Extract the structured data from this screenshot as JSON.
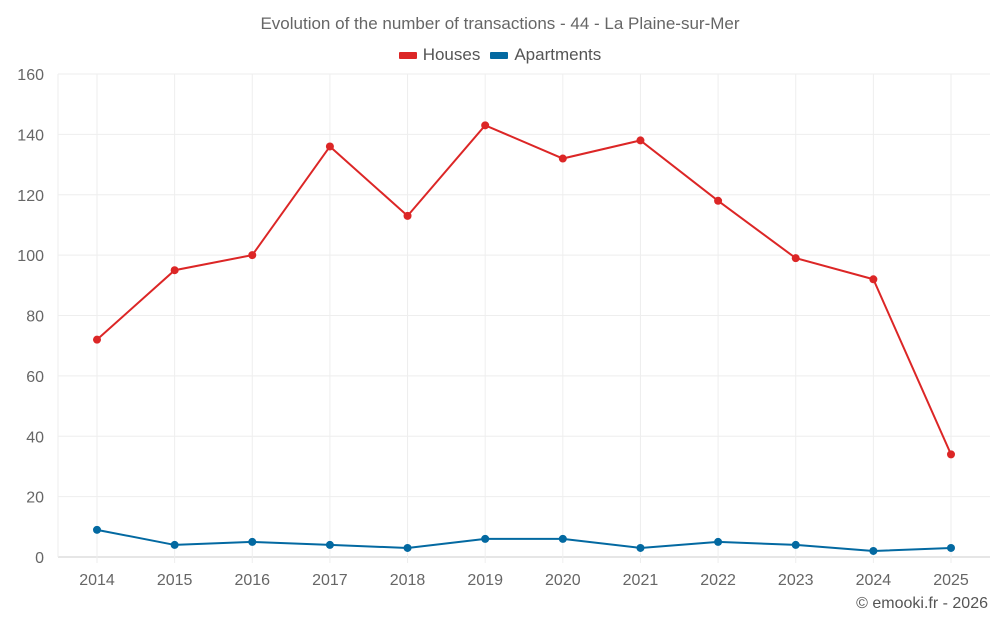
{
  "chart_data": {
    "type": "line",
    "title": "Evolution of the number of transactions - 44 - La Plaine-sur-Mer",
    "categories": [
      "2014",
      "2015",
      "2016",
      "2017",
      "2018",
      "2019",
      "2020",
      "2021",
      "2022",
      "2023",
      "2024",
      "2025"
    ],
    "series": [
      {
        "name": "Houses",
        "color": "#dc2626",
        "values": [
          72,
          95,
          100,
          136,
          113,
          143,
          132,
          138,
          118,
          99,
          92,
          34
        ]
      },
      {
        "name": "Apartments",
        "color": "#0369a1",
        "values": [
          9,
          4,
          5,
          4,
          3,
          6,
          6,
          3,
          5,
          4,
          2,
          3
        ]
      }
    ],
    "ylim": [
      0,
      160
    ],
    "yticks": [
      0,
      20,
      40,
      60,
      80,
      100,
      120,
      140,
      160
    ],
    "legend_position": "top-center",
    "grid": true
  },
  "credit": "© emooki.fr - 2026"
}
